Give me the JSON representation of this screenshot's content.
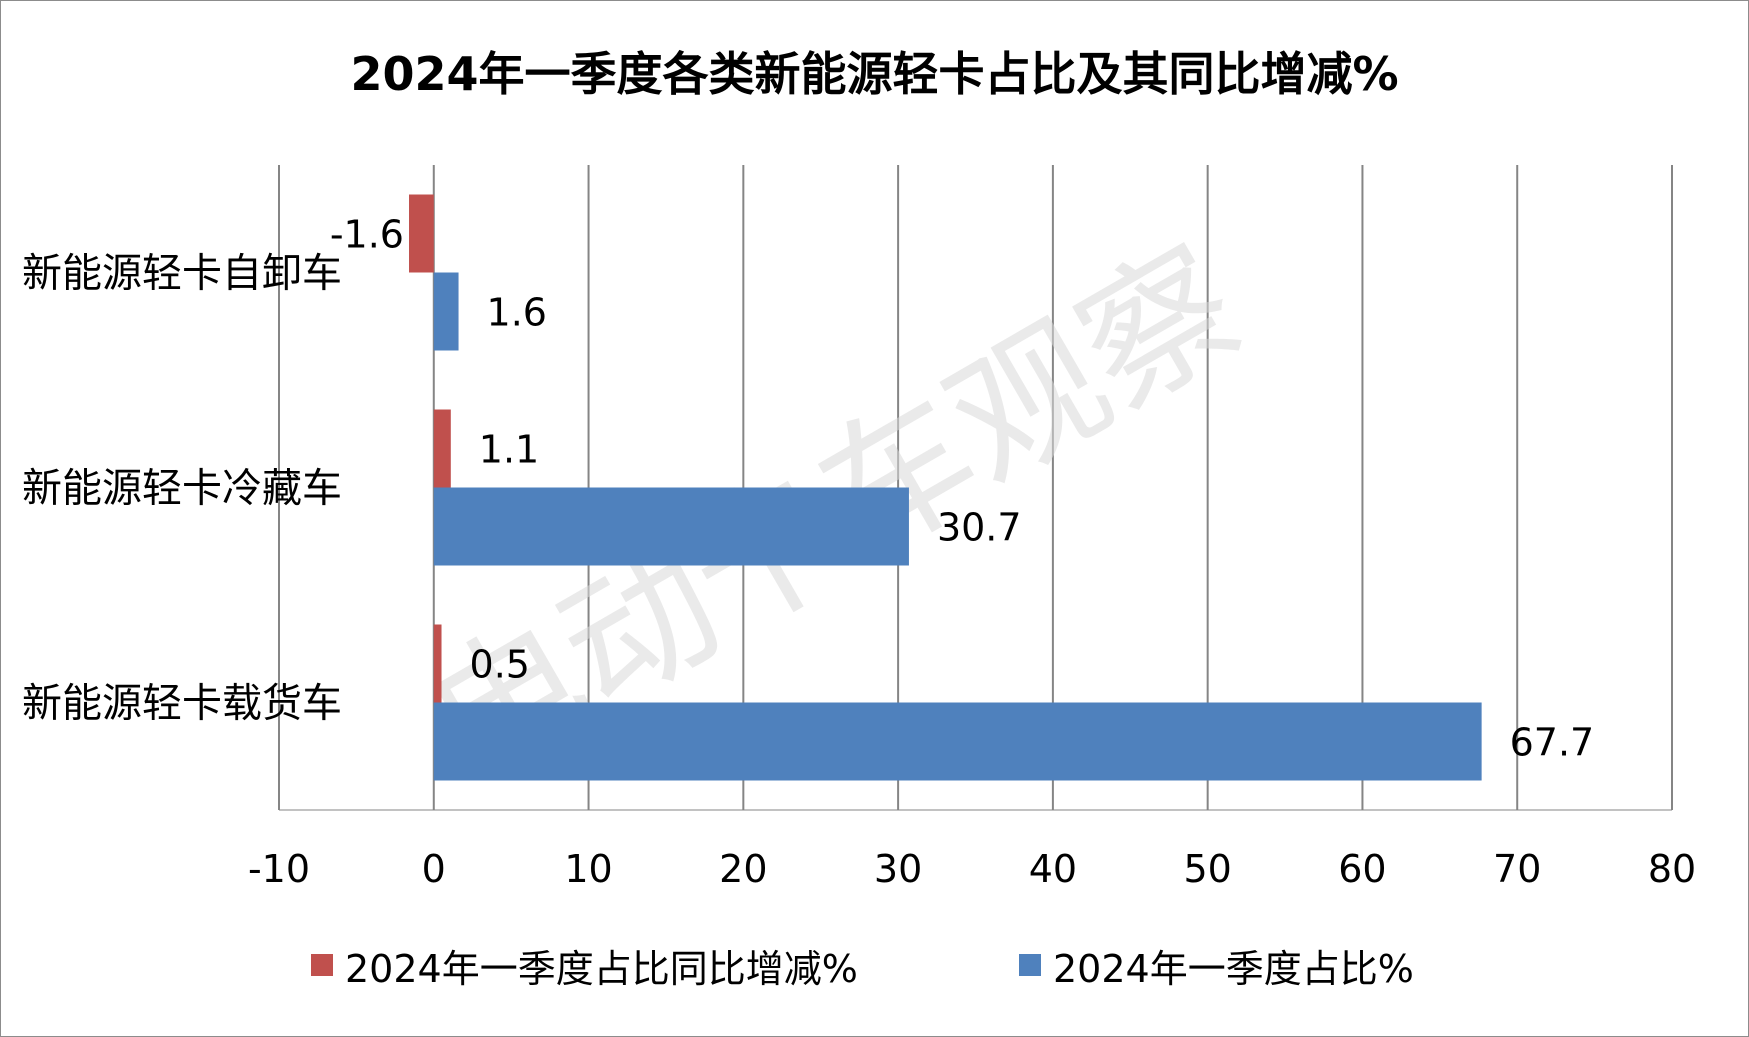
{
  "chart_data": {
    "type": "bar",
    "orientation": "horizontal",
    "title": "2024年一季度各类新能源轻卡占比及其同比增减%",
    "categories": [
      "新能源轻卡自卸车",
      "新能源轻卡冷藏车",
      "新能源轻卡载货车"
    ],
    "series": [
      {
        "name": "2024年一季度占比同比增减%",
        "color": "#c0504d",
        "values": [
          -1.6,
          1.1,
          0.5
        ]
      },
      {
        "name": "2024年一季度占比%",
        "color": "#4f81bd",
        "values": [
          1.6,
          30.7,
          67.7
        ]
      }
    ],
    "xlim": [
      -10,
      80
    ],
    "xticks": [
      "-10",
      "0",
      "10",
      "20",
      "30",
      "40",
      "50",
      "60",
      "70",
      "80"
    ],
    "grid": true,
    "legend_position": "bottom",
    "data_labels": true
  },
  "watermark": "电动卡车观察"
}
